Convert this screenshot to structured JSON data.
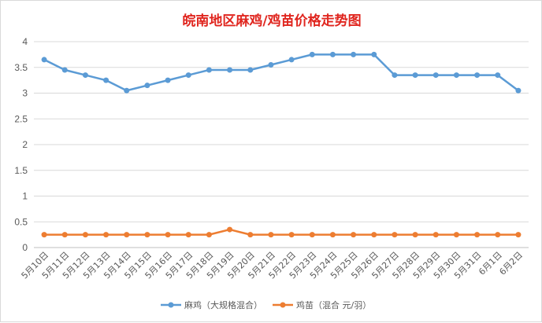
{
  "chart_data": {
    "type": "line",
    "title": "皖南地区麻鸡/鸡苗价格走势图",
    "xlabel": "",
    "ylabel": "",
    "categories": [
      "5月10日",
      "5月11日",
      "5月12日",
      "5月13日",
      "5月14日",
      "5月15日",
      "5月16日",
      "5月17日",
      "5月18日",
      "5月19日",
      "5月20日",
      "5月21日",
      "5月22日",
      "5月23日",
      "5月24日",
      "5月25日",
      "5月26日",
      "5月27日",
      "5月28日",
      "5月29日",
      "5月30日",
      "5月31日",
      "6月1日",
      "6月2日"
    ],
    "ylim": [
      0,
      4
    ],
    "yticks": [
      "0",
      "0.5",
      "1",
      "1.5",
      "2",
      "2.5",
      "3",
      "3.5",
      "4"
    ],
    "grid": true,
    "legend_position": "bottom",
    "series": [
      {
        "name": "麻鸡（大规格混合）",
        "color": "#5b9bd5",
        "values": [
          3.65,
          3.45,
          3.35,
          3.25,
          3.05,
          3.15,
          3.25,
          3.35,
          3.45,
          3.45,
          3.45,
          3.55,
          3.65,
          3.75,
          3.75,
          3.75,
          3.75,
          3.35,
          3.35,
          3.35,
          3.35,
          3.35,
          3.35,
          3.05
        ]
      },
      {
        "name": "鸡苗（混合 元/羽）",
        "color": "#ed7d31",
        "values": [
          0.25,
          0.25,
          0.25,
          0.25,
          0.25,
          0.25,
          0.25,
          0.25,
          0.25,
          0.35,
          0.25,
          0.25,
          0.25,
          0.25,
          0.25,
          0.25,
          0.25,
          0.25,
          0.25,
          0.25,
          0.25,
          0.25,
          0.25,
          0.25
        ]
      }
    ]
  }
}
